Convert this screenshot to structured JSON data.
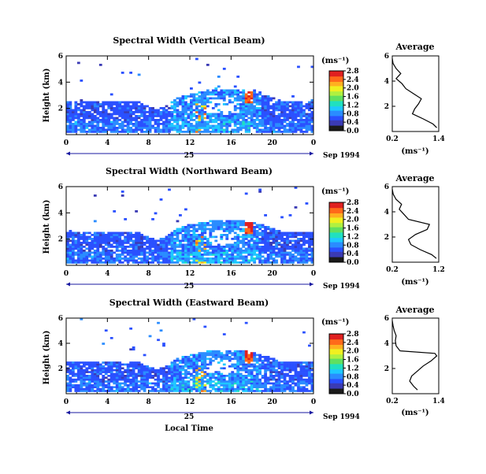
{
  "colors": {
    "scale": [
      "#1a1a1a",
      "#3b3bb4",
      "#2a50ff",
      "#2a8cff",
      "#1ec8ff",
      "#20e0c0",
      "#60e060",
      "#b0f040",
      "#f0f020",
      "#ffb020",
      "#ff6a1a",
      "#e02020"
    ],
    "bg": "#ffffff"
  },
  "chart_data": [
    {
      "type": "heatmap",
      "title": "Spectral Width (Vertical Beam)",
      "ylabel": "Height (km)",
      "xlabel": "",
      "xticks": [
        "0",
        "4",
        "8",
        "12",
        "16",
        "20",
        "0"
      ],
      "day_label": "25",
      "date_label": "Sep 1994",
      "xlim": [
        0,
        24
      ],
      "ylim": [
        0,
        6
      ],
      "yticks": [
        "2",
        "4",
        "6"
      ],
      "colorbar": {
        "unit": "(ms⁻¹)",
        "ticks": [
          "0.0",
          "0.4",
          "0.8",
          "1.2",
          "1.6",
          "2.0",
          "2.4",
          "2.8"
        ],
        "max": 2.8
      },
      "profile": {
        "title": "Average",
        "xlabel": "(ms⁻¹)",
        "xticks": [
          "0.2",
          "1.4"
        ],
        "xlim": [
          0.2,
          1.4
        ],
        "yticks": [
          "2",
          "4",
          "6"
        ],
        "height": [
          0.3,
          0.6,
          1.0,
          1.4,
          1.8,
          2.2,
          2.6,
          3.0,
          3.4,
          3.8,
          4.2,
          4.6,
          5.0,
          5.4,
          5.8
        ],
        "value": [
          1.35,
          1.25,
          1.0,
          0.72,
          0.78,
          0.88,
          0.95,
          0.75,
          0.55,
          0.45,
          0.3,
          0.42,
          0.3,
          0.22,
          0.2
        ]
      }
    },
    {
      "type": "heatmap",
      "title": "Spectral Width (Northward Beam)",
      "ylabel": "Height (km)",
      "xlabel": "",
      "xticks": [
        "0",
        "4",
        "8",
        "12",
        "16",
        "20",
        "0"
      ],
      "day_label": "25",
      "date_label": "Sep 1994",
      "xlim": [
        0,
        24
      ],
      "ylim": [
        0,
        6
      ],
      "yticks": [
        "2",
        "4",
        "6"
      ],
      "colorbar": {
        "unit": "(ms⁻¹)",
        "ticks": [
          "0.0",
          "0.4",
          "0.8",
          "1.2",
          "1.6",
          "2.0",
          "2.4",
          "2.8"
        ],
        "max": 2.8
      },
      "profile": {
        "title": "Average",
        "xlabel": "(ms⁻¹)",
        "xticks": [
          "0.2",
          "1.2"
        ],
        "xlim": [
          0.2,
          1.2
        ],
        "yticks": [
          "2",
          "4",
          "6"
        ],
        "height": [
          0.3,
          0.6,
          1.0,
          1.4,
          1.8,
          2.2,
          2.6,
          3.0,
          3.4,
          3.8,
          4.2,
          4.6,
          5.0,
          5.4,
          5.8
        ],
        "value": [
          1.15,
          1.05,
          0.8,
          0.6,
          0.55,
          0.7,
          0.95,
          1.0,
          0.55,
          0.45,
          0.35,
          0.4,
          0.28,
          0.22,
          0.2
        ]
      }
    },
    {
      "type": "heatmap",
      "title": "Spectral Width (Eastward Beam)",
      "ylabel": "Height (km)",
      "xlabel": "Local Time",
      "xticks": [
        "0",
        "4",
        "8",
        "12",
        "16",
        "20",
        "0"
      ],
      "day_label": "25",
      "date_label": "Sep 1994",
      "xlim": [
        0,
        24
      ],
      "ylim": [
        0,
        6
      ],
      "yticks": [
        "2",
        "4",
        "6"
      ],
      "colorbar": {
        "unit": "(ms⁻¹)",
        "ticks": [
          "0.0",
          "0.4",
          "0.8",
          "1.2",
          "1.6",
          "2.0",
          "2.4",
          "2.8"
        ],
        "max": 2.8
      },
      "profile": {
        "title": "Average",
        "xlabel": "(ms⁻¹)",
        "xticks": [
          "0.2",
          "1.4"
        ],
        "xlim": [
          0.2,
          1.4
        ],
        "yticks": [
          "2",
          "4",
          "6"
        ],
        "height": [
          0.3,
          0.6,
          1.0,
          1.4,
          1.8,
          2.2,
          2.6,
          3.0,
          3.2,
          3.4,
          3.8,
          4.2,
          4.6,
          5.0,
          5.4,
          5.8
        ],
        "value": [
          0.85,
          0.75,
          0.65,
          0.7,
          0.85,
          1.0,
          1.2,
          1.35,
          1.3,
          0.4,
          0.3,
          0.28,
          0.3,
          0.25,
          0.22,
          0.2
        ]
      }
    }
  ]
}
